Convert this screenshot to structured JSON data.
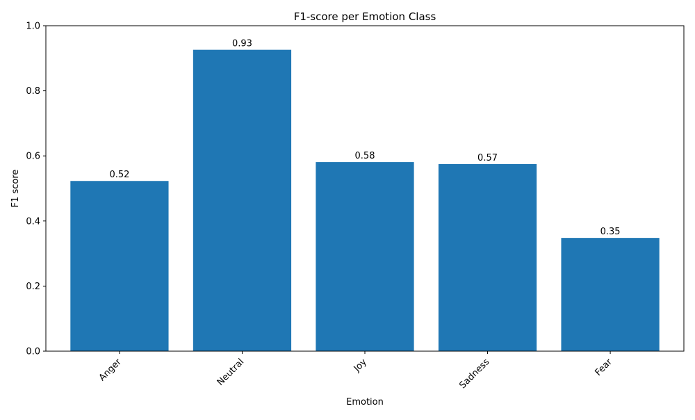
{
  "chart_data": {
    "type": "bar",
    "title": "F1-score per Emotion Class",
    "xlabel": "Emotion",
    "ylabel": "F1 score",
    "categories": [
      "Anger",
      "Neutral",
      "Joy",
      "Sadness",
      "Fear"
    ],
    "values": [
      0.523,
      0.926,
      0.581,
      0.575,
      0.348
    ],
    "data_labels": [
      "0.52",
      "0.93",
      "0.58",
      "0.57",
      "0.35"
    ],
    "ylim": [
      0,
      1
    ],
    "yticks": [
      0.0,
      0.2,
      0.4,
      0.6,
      0.8,
      1.0
    ],
    "ytick_labels": [
      "0.0",
      "0.2",
      "0.4",
      "0.6",
      "0.8",
      "1.0"
    ],
    "x_tick_rotation": "45deg, right-aligned",
    "grid": false,
    "legend": "none",
    "colors": {
      "bar": "#1f77b4",
      "axis": "#000000"
    }
  }
}
